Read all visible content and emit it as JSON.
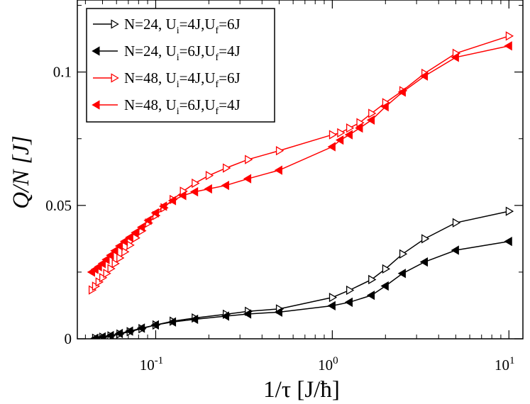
{
  "chart_data": {
    "type": "line",
    "xscale": "log",
    "xlim": [
      0.036,
      12
    ],
    "ylim": [
      0,
      0.127
    ],
    "xlabel": "1/τ  [J/ħ]",
    "ylabel": "Q/N  [J]",
    "x_ticks": [
      {
        "value": 0.1,
        "base": "10",
        "exp": "-1"
      },
      {
        "value": 1,
        "base": "10",
        "exp": "0"
      },
      {
        "value": 10,
        "base": "10",
        "exp": "1"
      }
    ],
    "y_ticks": [
      {
        "value": 0,
        "label": "0"
      },
      {
        "value": 0.05,
        "label": "0.05"
      },
      {
        "value": 0.1,
        "label": "0.1"
      }
    ],
    "series": [
      {
        "name": "N=24, U_i=4J,U_f=6J",
        "legend": {
          "prefix": "N=24, U",
          "sub1": "i",
          "mid": "=4J,U",
          "sub2": "f",
          "suffix": "=6J"
        },
        "color": "#000000",
        "marker": "triangle-right",
        "filled": false,
        "x": [
          0.0455,
          0.05,
          0.0556,
          0.0625,
          0.0714,
          0.0833,
          0.1,
          0.125,
          0.1667,
          0.25,
          0.3333,
          0.5,
          1.0,
          1.25,
          1.6667,
          2.0,
          2.5,
          3.3333,
          5.0,
          10.0
        ],
        "y": [
          0.0002,
          0.0006,
          0.0011,
          0.0018,
          0.0027,
          0.0038,
          0.0052,
          0.0066,
          0.0078,
          0.0092,
          0.0103,
          0.0112,
          0.0155,
          0.0182,
          0.0222,
          0.0262,
          0.0318,
          0.0375,
          0.0435,
          0.0478
        ]
      },
      {
        "name": "N=24, U_i=6J,U_f=4J",
        "legend": {
          "prefix": "N=24, U",
          "sub1": "i",
          "mid": "=6J,U",
          "sub2": "f",
          "suffix": "=4J"
        },
        "color": "#000000",
        "marker": "triangle-left",
        "filled": true,
        "x": [
          0.0455,
          0.05,
          0.0556,
          0.0625,
          0.0714,
          0.0833,
          0.1,
          0.125,
          0.1667,
          0.25,
          0.3333,
          0.5,
          1.0,
          1.25,
          1.6667,
          2.0,
          2.5,
          3.3333,
          5.0,
          10.0
        ],
        "y": [
          0.0002,
          0.0007,
          0.0012,
          0.002,
          0.0029,
          0.004,
          0.0052,
          0.0063,
          0.0073,
          0.0085,
          0.0093,
          0.01,
          0.0124,
          0.0137,
          0.0163,
          0.0198,
          0.0245,
          0.0288,
          0.0332,
          0.0365
        ]
      },
      {
        "name": "N=48, U_i=4J,U_f=6J",
        "legend": {
          "prefix": "N=48, U",
          "sub1": "i",
          "mid": "=4J,U",
          "sub2": "f",
          "suffix": "=6J"
        },
        "color": "#ff0000",
        "marker": "triangle-right",
        "filled": false,
        "x": [
          0.0435,
          0.0455,
          0.0476,
          0.05,
          0.0526,
          0.0556,
          0.0588,
          0.0625,
          0.0667,
          0.0714,
          0.0769,
          0.0833,
          0.0909,
          0.1,
          0.1111,
          0.125,
          0.1429,
          0.1667,
          0.2,
          0.25,
          0.3333,
          0.5,
          1.0,
          1.1111,
          1.25,
          1.4286,
          1.6667,
          2.0,
          2.5,
          3.3333,
          5.0,
          10.0
        ],
        "y": [
          0.0183,
          0.0197,
          0.0213,
          0.0229,
          0.0245,
          0.0263,
          0.0282,
          0.0303,
          0.0326,
          0.0351,
          0.0378,
          0.0405,
          0.0434,
          0.0462,
          0.0491,
          0.0522,
          0.0553,
          0.0583,
          0.0612,
          0.064,
          0.0672,
          0.0705,
          0.0765,
          0.0772,
          0.079,
          0.081,
          0.0845,
          0.0885,
          0.093,
          0.0995,
          0.107,
          0.1135
        ]
      },
      {
        "name": "N=48, U_i=6J,U_f=4J",
        "legend": {
          "prefix": "N=48, U",
          "sub1": "i",
          "mid": "=6J,U",
          "sub2": "f",
          "suffix": "=4J"
        },
        "color": "#ff0000",
        "marker": "triangle-left",
        "filled": true,
        "x": [
          0.0435,
          0.0455,
          0.0476,
          0.05,
          0.0526,
          0.0556,
          0.0588,
          0.0625,
          0.0667,
          0.0714,
          0.0769,
          0.0833,
          0.0909,
          0.1,
          0.1111,
          0.125,
          0.1429,
          0.1667,
          0.2,
          0.25,
          0.3333,
          0.5,
          1.0,
          1.1111,
          1.25,
          1.4286,
          1.6667,
          2.0,
          2.5,
          3.3333,
          5.0,
          10.0
        ],
        "y": [
          0.025,
          0.026,
          0.027,
          0.0282,
          0.0297,
          0.0313,
          0.033,
          0.0348,
          0.0365,
          0.038,
          0.0398,
          0.0418,
          0.0444,
          0.0472,
          0.0497,
          0.0518,
          0.0537,
          0.0551,
          0.0562,
          0.0575,
          0.06,
          0.0632,
          0.072,
          0.0745,
          0.0765,
          0.079,
          0.082,
          0.087,
          0.0925,
          0.0985,
          0.1055,
          0.1098
        ]
      }
    ]
  }
}
